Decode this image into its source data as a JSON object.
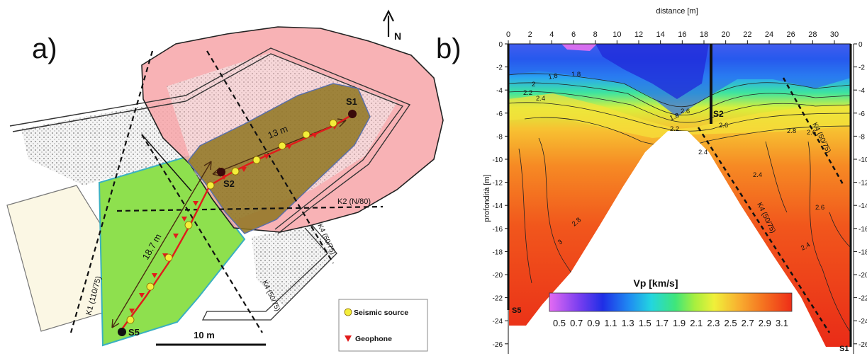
{
  "panel_a": {
    "label": "a)",
    "north": "N",
    "sources": [
      "S1",
      "S2",
      "S5"
    ],
    "dist_13": "13 m",
    "dist_187": "18.7 m",
    "k1": "K1 (110/75)",
    "k2": "K2 (N/80)",
    "k4_a": "K4 (50/75)",
    "k4_b": "K4 (50/75)",
    "scale": "10 m",
    "legend": {
      "source": "Seismic source",
      "geophone": "Geophone"
    }
  },
  "panel_b": {
    "label": "b)",
    "x_title": "distance [m]",
    "y_title": "profondità [m]",
    "x_ticks": [
      "0",
      "2",
      "4",
      "6",
      "8",
      "10",
      "12",
      "14",
      "16",
      "18",
      "20",
      "22",
      "24",
      "26",
      "28",
      "30"
    ],
    "y_ticks": [
      "0",
      "-2",
      "-4",
      "-6",
      "-8",
      "-10",
      "-12",
      "-14",
      "-16",
      "-18",
      "-20",
      "-22",
      "-24",
      "-26"
    ],
    "y_ticks_right": [
      "0",
      "-2",
      "-4",
      "-6",
      "-8",
      "-10",
      "-12",
      "-14",
      "-16",
      "-18",
      "-20",
      "-22",
      "-24",
      "-26"
    ],
    "s2": "S2",
    "s5": "S5",
    "s1": "S1",
    "k4_a": "K4 (50/75)",
    "k4_b": "K4 (50/75)",
    "contours": [
      "1.6",
      "1.8",
      "2",
      "2.2",
      "2.4",
      "2.6",
      "2.8",
      "3",
      "1.8",
      "2.2",
      "2.4",
      "2.6",
      "2.4",
      "2.6",
      "2.4",
      "2.8",
      "2.6"
    ],
    "colorbar": {
      "title": "Vp [km/s]",
      "ticks": [
        "0.5",
        "0.7",
        "0.9",
        "1.1",
        "1.3",
        "1.5",
        "1.7",
        "1.9",
        "2.1",
        "2.3",
        "2.5",
        "2.7",
        "2.9",
        "3.1"
      ]
    }
  },
  "colors": {
    "pink": "#f7a4a8",
    "olive": "#8e7420",
    "green": "#8ee04e",
    "cream": "#fbf7e4",
    "red": "#e11b1b",
    "star": "#f3ee3a"
  }
}
